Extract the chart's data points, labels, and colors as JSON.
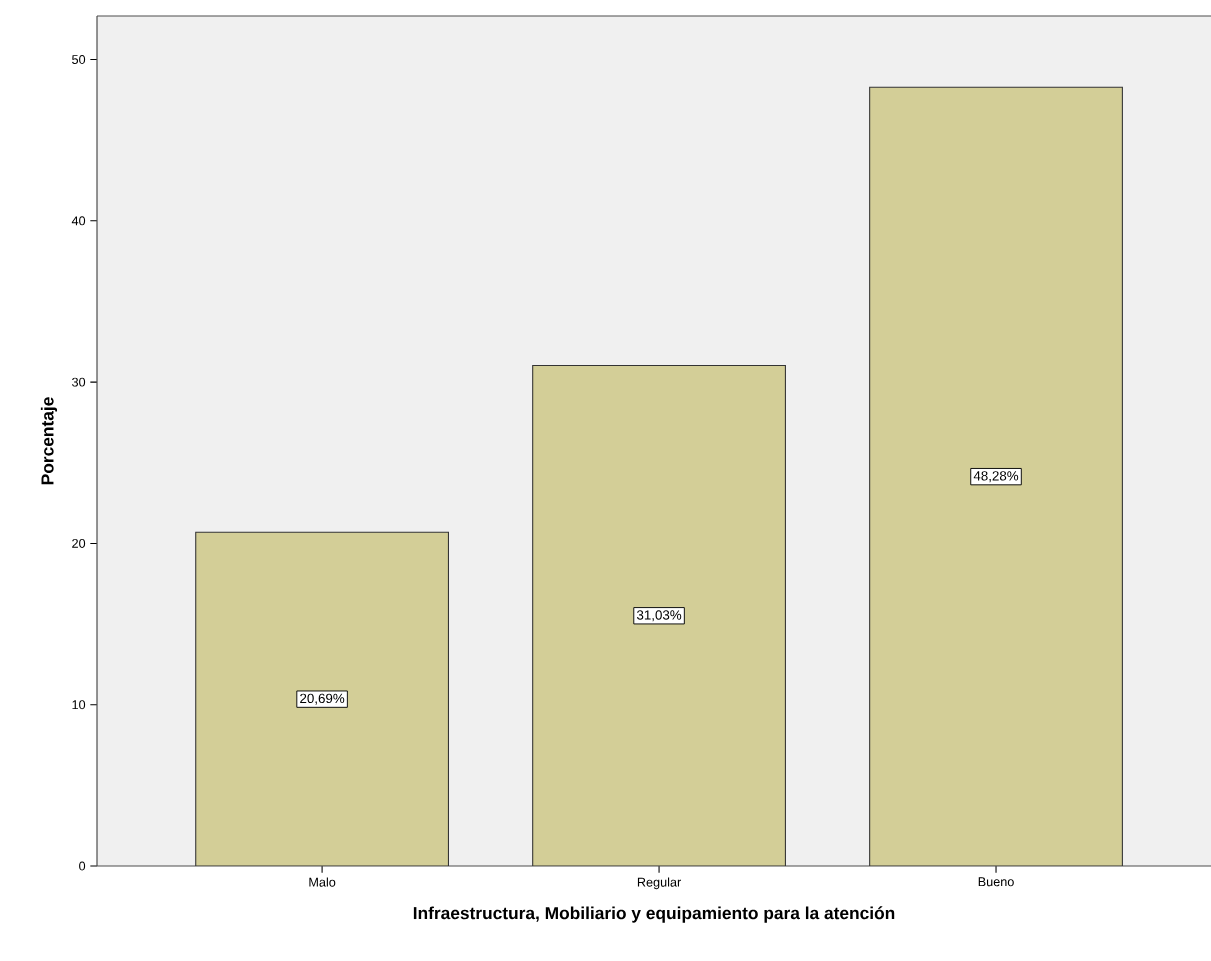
{
  "chart_data": {
    "type": "bar",
    "xlabel": "Infraestructura, Mobiliario y equipamiento para la atención",
    "ylabel": "Porcentaje",
    "categories": [
      "Malo",
      "Regular",
      "Bueno"
    ],
    "values": [
      20.69,
      31.03,
      48.28
    ],
    "value_labels": [
      "20,69%",
      "31,03%",
      "48,28%"
    ],
    "color": "#d3ce97",
    "ylim": [
      0,
      52.7
    ],
    "yticks": [
      0,
      10,
      20,
      30,
      40,
      50
    ]
  }
}
